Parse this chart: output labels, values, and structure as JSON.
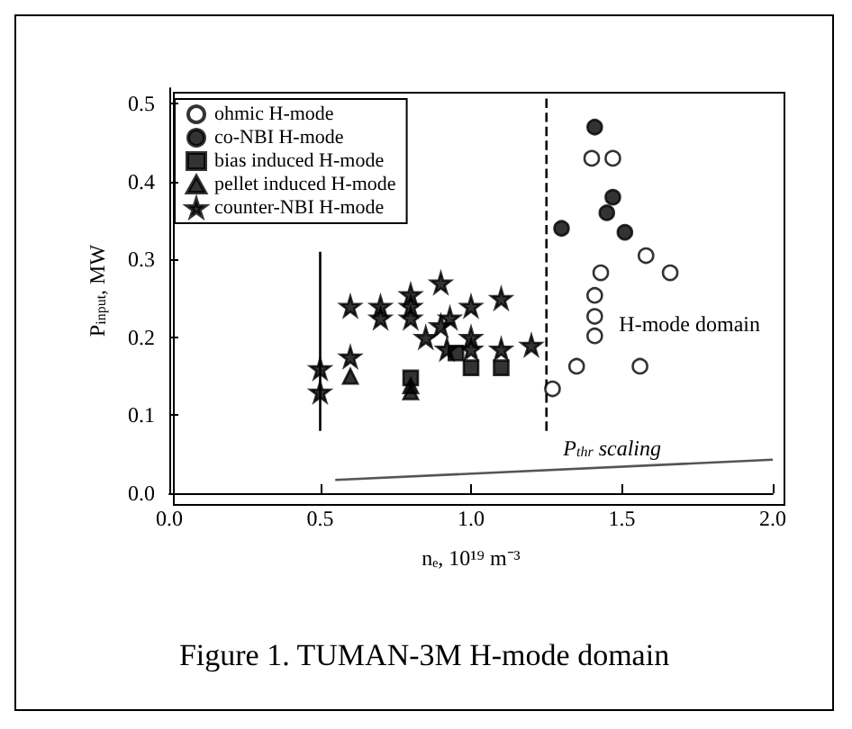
{
  "chart_data": {
    "type": "scatter",
    "title": "Figure 1. TUMAN-3M H-mode domain",
    "xlabel": "nₑ, 10¹⁹ m⁻³",
    "ylabel": "P$_{input}$, MW",
    "xlim": [
      0,
      2
    ],
    "ylim": [
      0,
      0.52
    ],
    "xticks": [
      {
        "value": 0,
        "label": "0.0"
      },
      {
        "value": 0.5,
        "label": "0.5"
      },
      {
        "value": 1,
        "label": "1.0"
      },
      {
        "value": 1.5,
        "label": "1.5"
      },
      {
        "value": 2,
        "label": "2.0"
      }
    ],
    "yticks": [
      {
        "value": 0,
        "label": "0.0"
      },
      {
        "value": 0.1,
        "label": "0.1"
      },
      {
        "value": 0.2,
        "label": "0.2"
      },
      {
        "value": 0.3,
        "label": "0.3"
      },
      {
        "value": 0.4,
        "label": "0.4"
      },
      {
        "value": 0.5,
        "label": "0.5"
      }
    ],
    "grid": false,
    "legend": "top left",
    "series": [
      {
        "name": "ohmic H-mode",
        "color": "#ffffff",
        "marker": "circle",
        "x": [
          1.27,
          1.35,
          1.56,
          1.4,
          1.47,
          1.58,
          1.43,
          1.66,
          1.41,
          1.41,
          1.41
        ],
        "values": [
          0.134,
          0.163,
          0.163,
          0.43,
          0.43,
          0.305,
          0.283,
          0.283,
          0.254,
          0.227,
          0.202
        ]
      },
      {
        "name": "co-NBI H-mode",
        "color": "#000000",
        "marker": "circle",
        "x": [
          1.41,
          1.47,
          1.45,
          1.3,
          1.51
        ],
        "values": [
          0.47,
          0.38,
          0.36,
          0.34,
          0.335
        ]
      },
      {
        "name": "bias induced H-mode",
        "color": "#000000",
        "marker": "square",
        "x": [
          1.0,
          1.1,
          0.95,
          0.8
        ],
        "values": [
          0.161,
          0.161,
          0.18,
          0.148
        ]
      },
      {
        "name": "pellet induced H-mode",
        "color": "#000000",
        "marker": "triangle",
        "x": [
          0.6,
          0.8,
          0.8
        ],
        "values": [
          0.15,
          0.138,
          0.13
        ]
      },
      {
        "name": "counter-NBI H-mode",
        "color": "#000000",
        "marker": "star",
        "x": [
          0.5,
          0.5,
          0.6,
          0.6,
          0.7,
          0.7,
          0.8,
          0.8,
          0.8,
          0.85,
          0.9,
          0.9,
          0.93,
          0.92,
          1.0,
          1.0,
          1.0,
          1.1,
          1.1,
          1.2
        ],
        "values": [
          0.16,
          0.13,
          0.24,
          0.175,
          0.24,
          0.225,
          0.255,
          0.24,
          0.225,
          0.2,
          0.27,
          0.215,
          0.225,
          0.185,
          0.24,
          0.2,
          0.185,
          0.25,
          0.185,
          0.19
        ]
      },
      {
        "type": "line",
        "color": "#000000",
        "line_style": "solid",
        "x": [
          0.5,
          0.5
        ],
        "values": [
          0.08,
          0.31
        ]
      },
      {
        "type": "line",
        "color": "#000000",
        "line_style": "dashed",
        "x": [
          1.25,
          1.25
        ],
        "values": [
          0.08,
          0.51
        ]
      },
      {
        "type": "line",
        "color": "#555555",
        "line_style": "solid",
        "x": [
          0.55,
          2.0
        ],
        "values": [
          0.017,
          0.043
        ]
      }
    ],
    "annotations": [
      "H-mode domain",
      "P$_{thr}$ scaling"
    ]
  }
}
